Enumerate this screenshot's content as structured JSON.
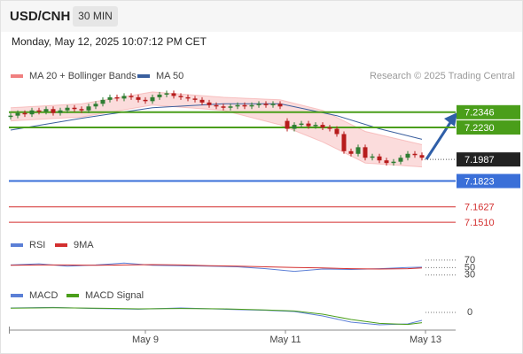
{
  "header": {
    "symbol": "USD/CNH",
    "interval": "30 MIN",
    "datetime": "Monday, May 12, 2025 10:07:12 PM CET",
    "credit": "Research © 2025 Trading Central"
  },
  "chart_data": [
    {
      "type": "candlestick",
      "xlim": [
        0,
        62
      ],
      "ylim": [
        7.145,
        7.256
      ],
      "xticks": [
        {
          "value": 19,
          "label": "May 9"
        },
        {
          "value": 38.75,
          "label": "May 11"
        },
        {
          "value": 58.5,
          "label": "May 13"
        }
      ],
      "up_color": "#2e7d32",
      "down_color": "#b71c1c",
      "open": [
        7.231,
        7.232,
        7.234,
        7.233,
        7.236,
        7.235,
        7.237,
        7.234,
        7.236,
        7.238,
        7.237,
        7.236,
        7.239,
        7.241,
        7.244,
        7.246,
        7.245,
        7.247,
        7.246,
        7.244,
        7.243,
        7.246,
        7.248,
        7.249,
        7.247,
        7.246,
        7.245,
        7.244,
        7.242,
        7.24,
        7.239,
        7.238,
        7.239,
        7.24,
        7.239,
        7.24,
        7.241,
        7.24,
        7.241,
        7.228,
        7.222,
        7.225,
        7.226,
        7.224,
        7.225,
        7.223,
        7.222,
        7.218,
        7.205,
        7.203,
        7.208,
        7.2,
        7.201,
        7.198,
        7.196,
        7.197,
        7.2,
        7.203,
        7.202
      ],
      "high": [
        7.234,
        7.236,
        7.236,
        7.238,
        7.238,
        7.239,
        7.239,
        7.238,
        7.24,
        7.24,
        7.239,
        7.241,
        7.243,
        7.246,
        7.248,
        7.248,
        7.249,
        7.249,
        7.248,
        7.246,
        7.248,
        7.25,
        7.251,
        7.251,
        7.249,
        7.248,
        7.247,
        7.246,
        7.244,
        7.242,
        7.241,
        7.241,
        7.242,
        7.242,
        7.242,
        7.243,
        7.243,
        7.243,
        7.243,
        7.23,
        7.227,
        7.228,
        7.228,
        7.227,
        7.227,
        7.225,
        7.224,
        7.22,
        7.207,
        7.21,
        7.21,
        7.203,
        7.203,
        7.2,
        7.199,
        7.202,
        7.205,
        7.205,
        7.204
      ],
      "low": [
        7.229,
        7.23,
        7.231,
        7.231,
        7.233,
        7.233,
        7.232,
        7.232,
        7.234,
        7.235,
        7.234,
        7.234,
        7.237,
        7.239,
        7.242,
        7.243,
        7.243,
        7.244,
        7.242,
        7.241,
        7.241,
        7.244,
        7.246,
        7.245,
        7.244,
        7.243,
        7.242,
        7.24,
        7.238,
        7.237,
        7.236,
        7.236,
        7.237,
        7.237,
        7.237,
        7.238,
        7.238,
        7.238,
        7.237,
        7.22,
        7.22,
        7.223,
        7.222,
        7.222,
        7.221,
        7.22,
        7.216,
        7.203,
        7.201,
        7.201,
        7.198,
        7.198,
        7.196,
        7.194,
        7.194,
        7.195,
        7.198,
        7.2,
        7.198
      ],
      "close": [
        7.232,
        7.234,
        7.233,
        7.236,
        7.235,
        7.237,
        7.234,
        7.236,
        7.238,
        7.237,
        7.236,
        7.239,
        7.241,
        7.244,
        7.246,
        7.245,
        7.247,
        7.246,
        7.244,
        7.243,
        7.246,
        7.248,
        7.249,
        7.247,
        7.246,
        7.245,
        7.244,
        7.242,
        7.24,
        7.239,
        7.238,
        7.239,
        7.24,
        7.239,
        7.24,
        7.241,
        7.24,
        7.241,
        7.239,
        7.222,
        7.225,
        7.226,
        7.224,
        7.225,
        7.223,
        7.222,
        7.218,
        7.205,
        7.203,
        7.208,
        7.2,
        7.201,
        7.198,
        7.196,
        7.197,
        7.2,
        7.203,
        7.202,
        7.2
      ],
      "series": [
        {
          "name": "MA 20 + Bollinger Bands",
          "color": "#f08080",
          "x": [
            0,
            10,
            20,
            30,
            38,
            44,
            50,
            58
          ],
          "upper": [
            7.238,
            7.241,
            7.25,
            7.246,
            7.244,
            7.236,
            7.22,
            7.21
          ],
          "lower": [
            7.228,
            7.231,
            7.24,
            7.236,
            7.225,
            7.212,
            7.196,
            7.193
          ]
        },
        {
          "name": "MA 50",
          "color": "#3a5f9e",
          "x": [
            0,
            10,
            20,
            30,
            38,
            46,
            52,
            58
          ],
          "values": [
            7.221,
            7.23,
            7.238,
            7.241,
            7.241,
            7.232,
            7.222,
            7.214
          ]
        }
      ],
      "levels": [
        {
          "value": 7.2346,
          "label": "7.2346",
          "color": "#4a9e1a",
          "boxed": true
        },
        {
          "value": 7.223,
          "label": "7.2230",
          "color": "#4a9e1a",
          "boxed": true
        },
        {
          "value": 7.1823,
          "label": "7.1823",
          "color": "#3a6fd8",
          "boxed": true
        },
        {
          "value": 7.1627,
          "label": "7.1627",
          "color": "#d32f2f",
          "boxed": false
        },
        {
          "value": 7.151,
          "label": "7.1510",
          "color": "#d32f2f",
          "boxed": false
        }
      ],
      "last": {
        "value": 7.1987,
        "label": "7.1987",
        "color": "#222222"
      }
    },
    {
      "type": "line",
      "xlim": [
        0,
        62
      ],
      "ylim": [
        13,
        91
      ],
      "yticks": [
        70,
        50,
        30
      ],
      "x": [
        0,
        4,
        8,
        12,
        16,
        20,
        24,
        28,
        32,
        36,
        40,
        44,
        48,
        52,
        56,
        58
      ],
      "series": [
        {
          "name": "RSI",
          "color": "#5b7fd6",
          "values": [
            57,
            60,
            54,
            57,
            62,
            56,
            55,
            54,
            52,
            47,
            40,
            46,
            45,
            47,
            50,
            51
          ]
        },
        {
          "name": "9MA",
          "color": "#d32f2f",
          "values": [
            56,
            57,
            57,
            56,
            57,
            58,
            57,
            55,
            54,
            52,
            50,
            49,
            47,
            46,
            47,
            49
          ]
        }
      ]
    },
    {
      "type": "line",
      "xlim": [
        0,
        62
      ],
      "ylim": [
        -0.0095,
        0.0065
      ],
      "yticks": [
        0
      ],
      "x": [
        0,
        6,
        12,
        18,
        24,
        30,
        36,
        40,
        44,
        48,
        52,
        56,
        58
      ],
      "series": [
        {
          "name": "MACD",
          "color": "#5b7fd6",
          "values": [
            0.0025,
            0.0028,
            0.0022,
            0.0018,
            0.0025,
            0.0018,
            0.0012,
            0.0005,
            -0.002,
            -0.0055,
            -0.007,
            -0.0065,
            -0.0045
          ]
        },
        {
          "name": "MACD Signal",
          "color": "#4a9e1a",
          "values": [
            0.0024,
            0.0026,
            0.0024,
            0.002,
            0.0022,
            0.002,
            0.0014,
            0.0008,
            -0.001,
            -0.004,
            -0.0062,
            -0.0068,
            -0.0058
          ]
        }
      ]
    }
  ]
}
